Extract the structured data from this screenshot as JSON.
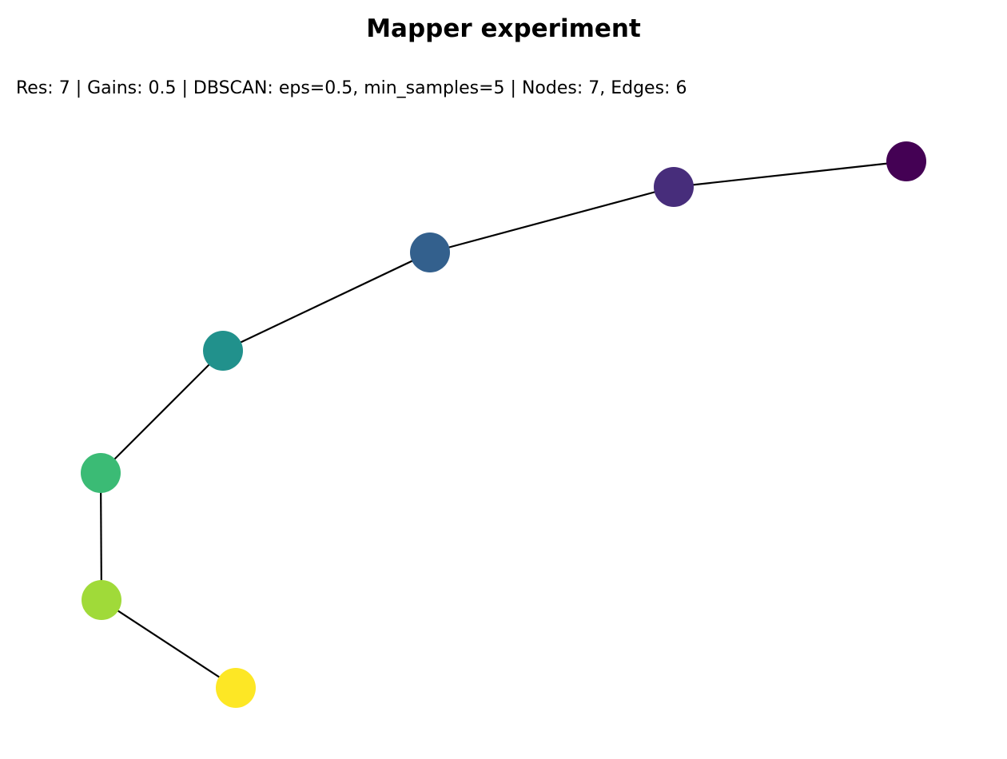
{
  "figure": {
    "title": "Mapper experiment",
    "subtitle": "Res: 7 | Gains: 0.5 | DBSCAN: eps=0.5, min_samples=5 | Nodes: 7, Edges: 6"
  },
  "graph": {
    "nodes": [
      {
        "id": "n0",
        "color": "#440154"
      },
      {
        "id": "n1",
        "color": "#472d7b"
      },
      {
        "id": "n2",
        "color": "#33608d"
      },
      {
        "id": "n3",
        "color": "#21918c"
      },
      {
        "id": "n4",
        "color": "#3bbb75"
      },
      {
        "id": "n5",
        "color": "#a0da39"
      },
      {
        "id": "n6",
        "color": "#fde725"
      }
    ],
    "edges": [
      {
        "from": "n0",
        "to": "n1"
      },
      {
        "from": "n1",
        "to": "n2"
      },
      {
        "from": "n2",
        "to": "n3"
      },
      {
        "from": "n3",
        "to": "n4"
      },
      {
        "from": "n4",
        "to": "n5"
      },
      {
        "from": "n5",
        "to": "n6"
      }
    ],
    "edge_color": "#000000"
  }
}
